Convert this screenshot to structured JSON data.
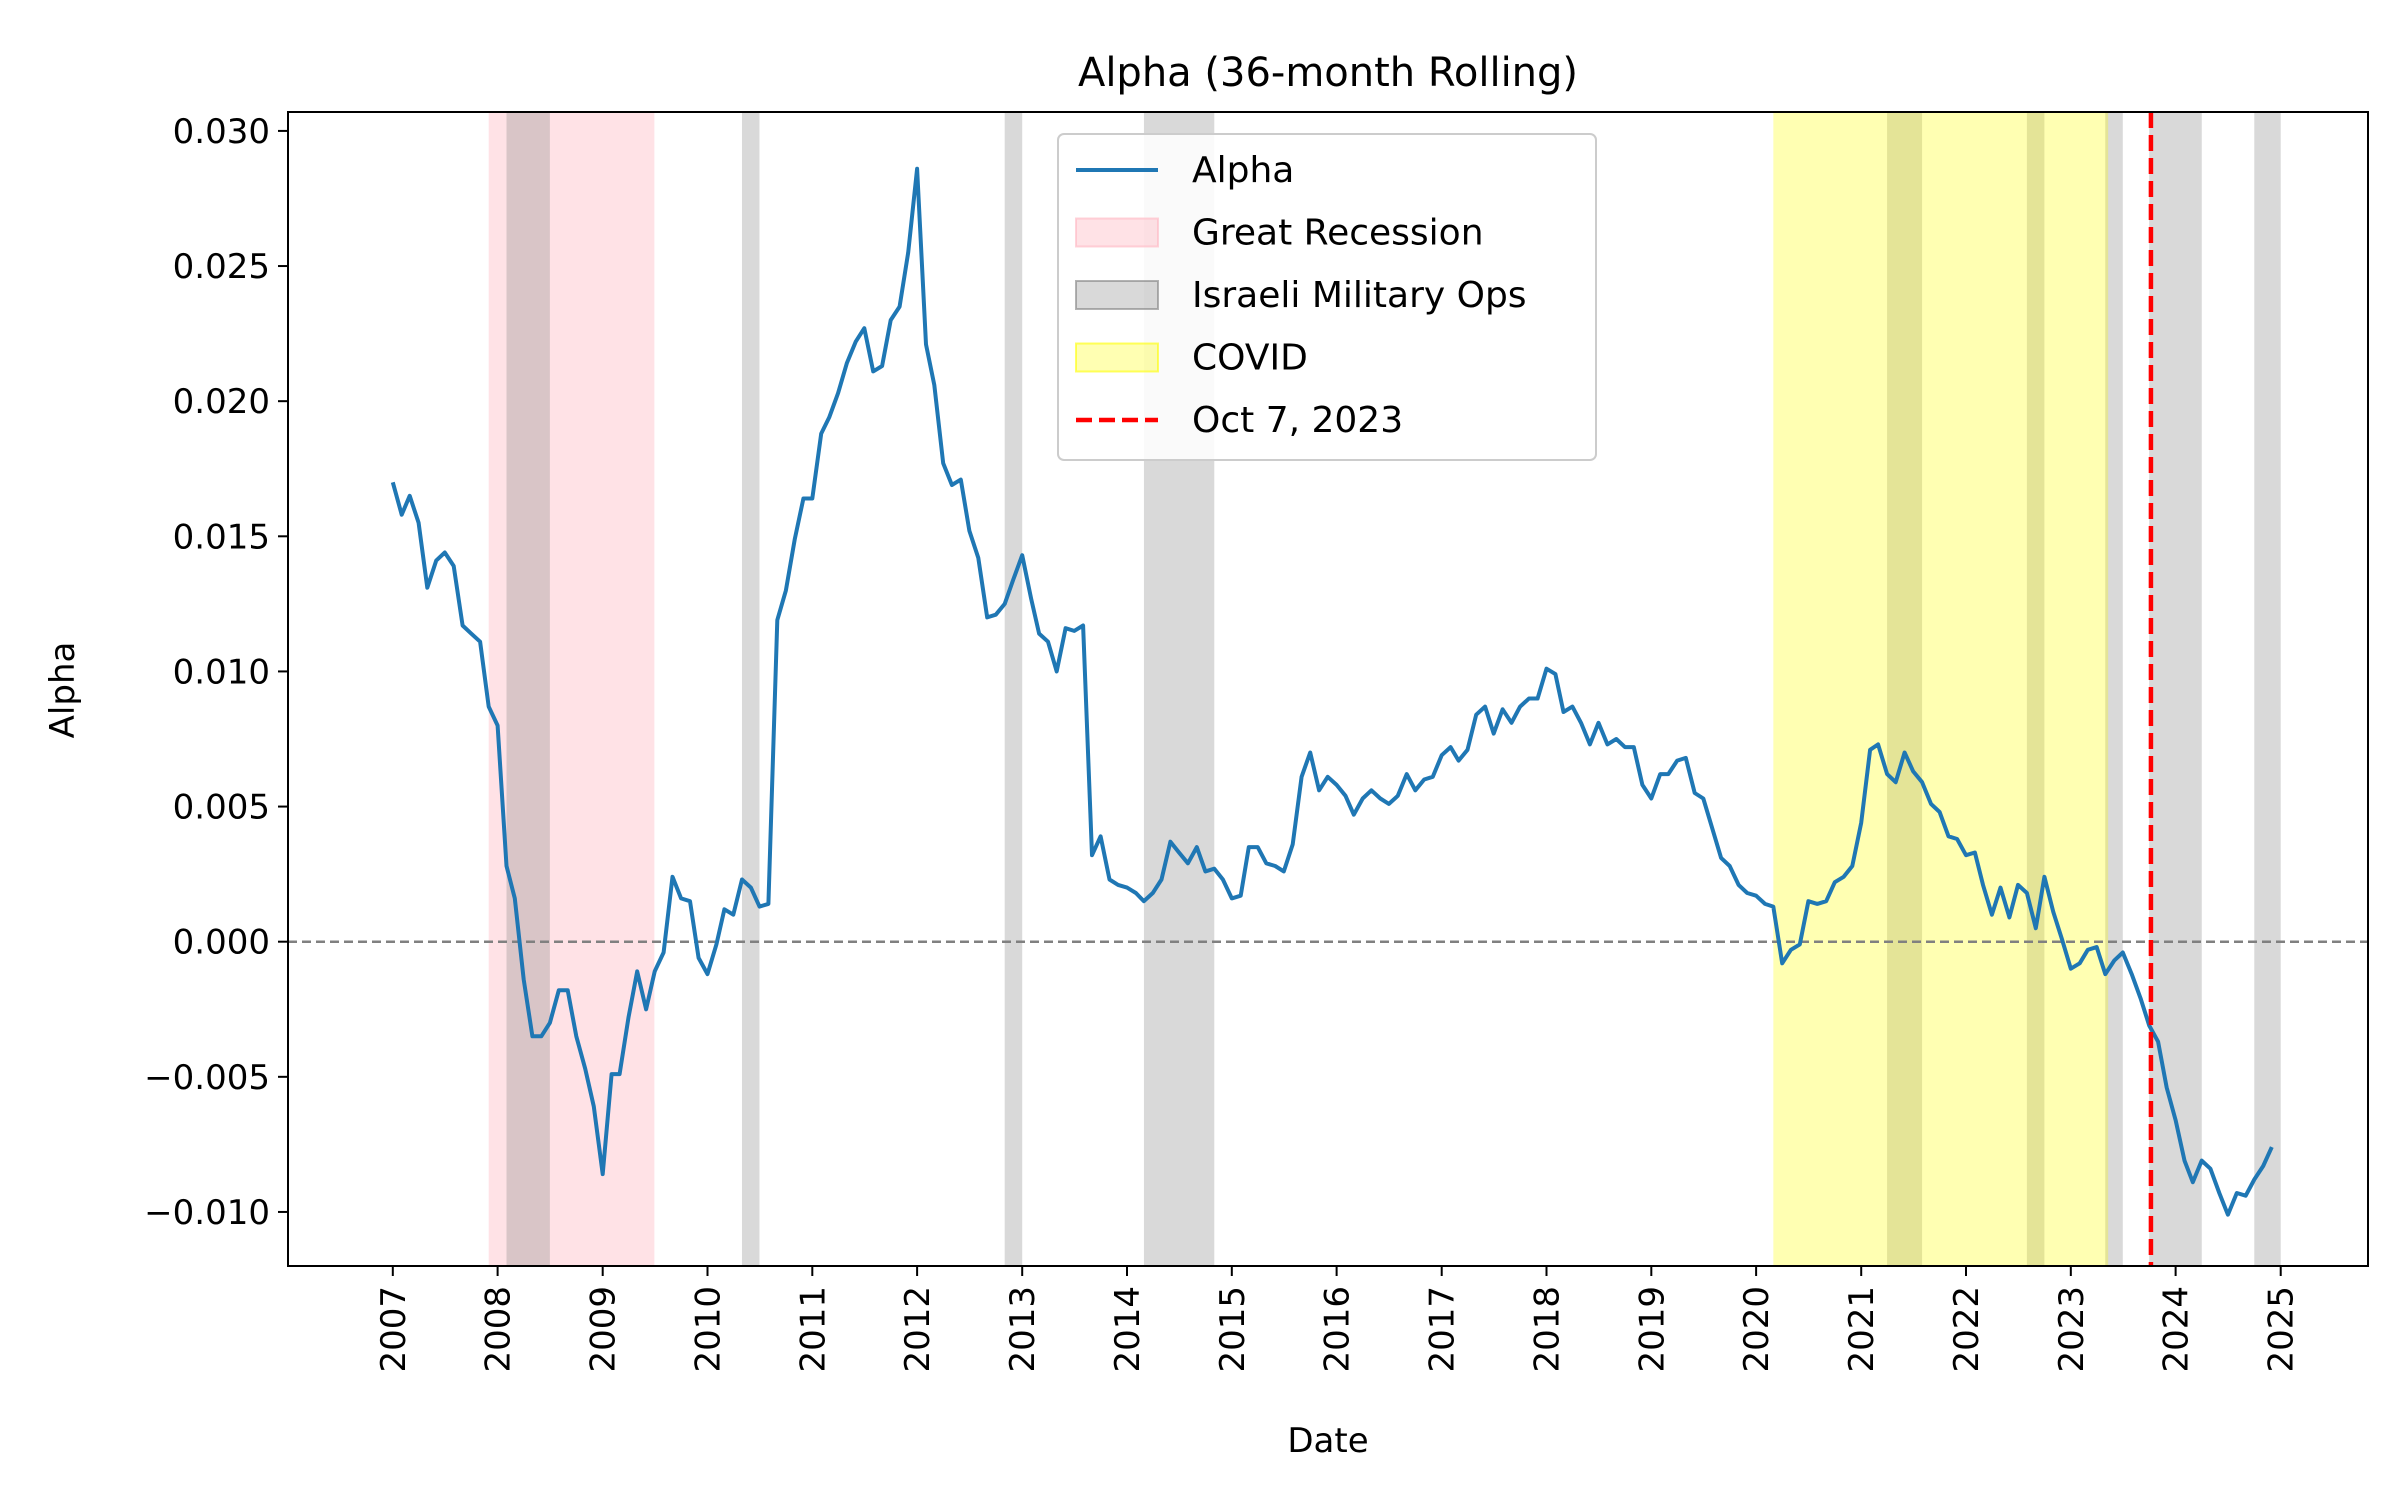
{
  "chart_data": {
    "type": "line",
    "title": "Alpha (36-month Rolling)",
    "xlabel": "Date",
    "ylabel": "Alpha",
    "xlim": [
      "2006-01-01",
      "2025-11-01"
    ],
    "ylim": [
      -0.012,
      0.0307
    ],
    "x_ticks": [
      "2007",
      "2008",
      "2009",
      "2010",
      "2011",
      "2012",
      "2013",
      "2014",
      "2015",
      "2016",
      "2017",
      "2018",
      "2019",
      "2020",
      "2021",
      "2022",
      "2023",
      "2024",
      "2025"
    ],
    "y_ticks": [
      {
        "value": 0.03,
        "label": "0.030"
      },
      {
        "value": 0.025,
        "label": "0.025"
      },
      {
        "value": 0.02,
        "label": "0.020"
      },
      {
        "value": 0.015,
        "label": "0.015"
      },
      {
        "value": 0.01,
        "label": "0.010"
      },
      {
        "value": 0.005,
        "label": "0.005"
      },
      {
        "value": 0.0,
        "label": "0.000"
      },
      {
        "value": -0.005,
        "label": "−0.005"
      },
      {
        "value": -0.01,
        "label": "−0.010"
      }
    ],
    "zero_line": {
      "value": 0.0,
      "color": "#808080",
      "style": "dashed"
    },
    "series": [
      {
        "name": "Alpha",
        "color": "#1f77b4",
        "points": [
          [
            "2007-01",
            0.017
          ],
          [
            "2007-02",
            0.0158
          ],
          [
            "2007-03",
            0.0165
          ],
          [
            "2007-04",
            0.0155
          ],
          [
            "2007-05",
            0.0131
          ],
          [
            "2007-06",
            0.0141
          ],
          [
            "2007-07",
            0.0144
          ],
          [
            "2007-08",
            0.0139
          ],
          [
            "2007-09",
            0.0117
          ],
          [
            "2007-10",
            0.0114
          ],
          [
            "2007-11",
            0.0111
          ],
          [
            "2007-12",
            0.0087
          ],
          [
            "2008-01",
            0.008
          ],
          [
            "2008-02",
            0.0028
          ],
          [
            "2008-03",
            0.0016
          ],
          [
            "2008-04",
            -0.0014
          ],
          [
            "2008-05",
            -0.0035
          ],
          [
            "2008-06",
            -0.0035
          ],
          [
            "2008-07",
            -0.003
          ],
          [
            "2008-08",
            -0.0018
          ],
          [
            "2008-09",
            -0.0018
          ],
          [
            "2008-10",
            -0.0035
          ],
          [
            "2008-11",
            -0.0047
          ],
          [
            "2008-12",
            -0.0061
          ],
          [
            "2009-01",
            -0.0086
          ],
          [
            "2009-02",
            -0.0049
          ],
          [
            "2009-03",
            -0.0049
          ],
          [
            "2009-04",
            -0.0028
          ],
          [
            "2009-05",
            -0.0011
          ],
          [
            "2009-06",
            -0.0025
          ],
          [
            "2009-07",
            -0.0011
          ],
          [
            "2009-08",
            -0.0004
          ],
          [
            "2009-09",
            0.0024
          ],
          [
            "2009-10",
            0.0016
          ],
          [
            "2009-11",
            0.0015
          ],
          [
            "2009-12",
            -0.0006
          ],
          [
            "2010-01",
            -0.0012
          ],
          [
            "2010-02",
            -0.0001
          ],
          [
            "2010-03",
            0.0012
          ],
          [
            "2010-04",
            0.001
          ],
          [
            "2010-05",
            0.0023
          ],
          [
            "2010-06",
            0.002
          ],
          [
            "2010-07",
            0.0013
          ],
          [
            "2010-08",
            0.0014
          ],
          [
            "2010-09",
            0.0119
          ],
          [
            "2010-10",
            0.013
          ],
          [
            "2010-11",
            0.0149
          ],
          [
            "2010-12",
            0.0164
          ],
          [
            "2011-01",
            0.0164
          ],
          [
            "2011-02",
            0.0188
          ],
          [
            "2011-03",
            0.0194
          ],
          [
            "2011-04",
            0.0203
          ],
          [
            "2011-05",
            0.0214
          ],
          [
            "2011-06",
            0.0222
          ],
          [
            "2011-07",
            0.0227
          ],
          [
            "2011-08",
            0.0211
          ],
          [
            "2011-09",
            0.0213
          ],
          [
            "2011-10",
            0.023
          ],
          [
            "2011-11",
            0.0235
          ],
          [
            "2011-12",
            0.0255
          ],
          [
            "2012-01",
            0.0286
          ],
          [
            "2012-02",
            0.0221
          ],
          [
            "2012-03",
            0.0206
          ],
          [
            "2012-04",
            0.0177
          ],
          [
            "2012-05",
            0.0169
          ],
          [
            "2012-06",
            0.0171
          ],
          [
            "2012-07",
            0.0152
          ],
          [
            "2012-08",
            0.0142
          ],
          [
            "2012-09",
            0.012
          ],
          [
            "2012-10",
            0.0121
          ],
          [
            "2012-11",
            0.0125
          ],
          [
            "2012-12",
            0.0134
          ],
          [
            "2013-01",
            0.0143
          ],
          [
            "2013-02",
            0.0127
          ],
          [
            "2013-03",
            0.0114
          ],
          [
            "2013-04",
            0.0111
          ],
          [
            "2013-05",
            0.01
          ],
          [
            "2013-06",
            0.0116
          ],
          [
            "2013-07",
            0.0115
          ],
          [
            "2013-08",
            0.0117
          ],
          [
            "2013-09",
            0.0032
          ],
          [
            "2013-10",
            0.0039
          ],
          [
            "2013-11",
            0.0023
          ],
          [
            "2013-12",
            0.0021
          ],
          [
            "2014-01",
            0.002
          ],
          [
            "2014-02",
            0.0018
          ],
          [
            "2014-03",
            0.0015
          ],
          [
            "2014-04",
            0.0018
          ],
          [
            "2014-05",
            0.0023
          ],
          [
            "2014-06",
            0.0037
          ],
          [
            "2014-07",
            0.0033
          ],
          [
            "2014-08",
            0.0029
          ],
          [
            "2014-09",
            0.0035
          ],
          [
            "2014-10",
            0.0026
          ],
          [
            "2014-11",
            0.0027
          ],
          [
            "2014-12",
            0.0023
          ],
          [
            "2015-01",
            0.0016
          ],
          [
            "2015-02",
            0.0017
          ],
          [
            "2015-03",
            0.0035
          ],
          [
            "2015-04",
            0.0035
          ],
          [
            "2015-05",
            0.0029
          ],
          [
            "2015-06",
            0.0028
          ],
          [
            "2015-07",
            0.0026
          ],
          [
            "2015-08",
            0.0036
          ],
          [
            "2015-09",
            0.0061
          ],
          [
            "2015-10",
            0.007
          ],
          [
            "2015-11",
            0.0056
          ],
          [
            "2015-12",
            0.0061
          ],
          [
            "2016-01",
            0.0058
          ],
          [
            "2016-02",
            0.0054
          ],
          [
            "2016-03",
            0.0047
          ],
          [
            "2016-04",
            0.0053
          ],
          [
            "2016-05",
            0.0056
          ],
          [
            "2016-06",
            0.0053
          ],
          [
            "2016-07",
            0.0051
          ],
          [
            "2016-08",
            0.0054
          ],
          [
            "2016-09",
            0.0062
          ],
          [
            "2016-10",
            0.0056
          ],
          [
            "2016-11",
            0.006
          ],
          [
            "2016-12",
            0.0061
          ],
          [
            "2017-01",
            0.0069
          ],
          [
            "2017-02",
            0.0072
          ],
          [
            "2017-03",
            0.0067
          ],
          [
            "2017-04",
            0.0071
          ],
          [
            "2017-05",
            0.0084
          ],
          [
            "2017-06",
            0.0087
          ],
          [
            "2017-07",
            0.0077
          ],
          [
            "2017-08",
            0.0086
          ],
          [
            "2017-09",
            0.0081
          ],
          [
            "2017-10",
            0.0087
          ],
          [
            "2017-11",
            0.009
          ],
          [
            "2017-12",
            0.009
          ],
          [
            "2018-01",
            0.0101
          ],
          [
            "2018-02",
            0.0099
          ],
          [
            "2018-03",
            0.0085
          ],
          [
            "2018-04",
            0.0087
          ],
          [
            "2018-05",
            0.0081
          ],
          [
            "2018-06",
            0.0073
          ],
          [
            "2018-07",
            0.0081
          ],
          [
            "2018-08",
            0.0073
          ],
          [
            "2018-09",
            0.0075
          ],
          [
            "2018-10",
            0.0072
          ],
          [
            "2018-11",
            0.0072
          ],
          [
            "2018-12",
            0.0058
          ],
          [
            "2019-01",
            0.0053
          ],
          [
            "2019-02",
            0.0062
          ],
          [
            "2019-03",
            0.0062
          ],
          [
            "2019-04",
            0.0067
          ],
          [
            "2019-05",
            0.0068
          ],
          [
            "2019-06",
            0.0055
          ],
          [
            "2019-07",
            0.0053
          ],
          [
            "2019-08",
            0.0042
          ],
          [
            "2019-09",
            0.0031
          ],
          [
            "2019-10",
            0.0028
          ],
          [
            "2019-11",
            0.0021
          ],
          [
            "2019-12",
            0.0018
          ],
          [
            "2020-01",
            0.0017
          ],
          [
            "2020-02",
            0.0014
          ],
          [
            "2020-03",
            0.0013
          ],
          [
            "2020-04",
            -0.0008
          ],
          [
            "2020-05",
            -0.0003
          ],
          [
            "2020-06",
            -0.0001
          ],
          [
            "2020-07",
            0.0015
          ],
          [
            "2020-08",
            0.0014
          ],
          [
            "2020-09",
            0.0015
          ],
          [
            "2020-10",
            0.0022
          ],
          [
            "2020-11",
            0.0024
          ],
          [
            "2020-12",
            0.0028
          ],
          [
            "2021-01",
            0.0044
          ],
          [
            "2021-02",
            0.0071
          ],
          [
            "2021-03",
            0.0073
          ],
          [
            "2021-04",
            0.0062
          ],
          [
            "2021-05",
            0.0059
          ],
          [
            "2021-06",
            0.007
          ],
          [
            "2021-07",
            0.0063
          ],
          [
            "2021-08",
            0.0059
          ],
          [
            "2021-09",
            0.0051
          ],
          [
            "2021-10",
            0.0048
          ],
          [
            "2021-11",
            0.0039
          ],
          [
            "2021-12",
            0.0038
          ],
          [
            "2022-01",
            0.0032
          ],
          [
            "2022-02",
            0.0033
          ],
          [
            "2022-03",
            0.0021
          ],
          [
            "2022-04",
            0.001
          ],
          [
            "2022-05",
            0.002
          ],
          [
            "2022-06",
            0.0009
          ],
          [
            "2022-07",
            0.0021
          ],
          [
            "2022-08",
            0.0018
          ],
          [
            "2022-09",
            0.0005
          ],
          [
            "2022-10",
            0.0024
          ],
          [
            "2022-11",
            0.0011
          ],
          [
            "2022-12",
            0.0001
          ],
          [
            "2023-01",
            -0.001
          ],
          [
            "2023-02",
            -0.0008
          ],
          [
            "2023-03",
            -0.0003
          ],
          [
            "2023-04",
            -0.0002
          ],
          [
            "2023-05",
            -0.0012
          ],
          [
            "2023-06",
            -0.0007
          ],
          [
            "2023-07",
            -0.0004
          ],
          [
            "2023-08",
            -0.0012
          ],
          [
            "2023-09",
            -0.0021
          ],
          [
            "2023-10",
            -0.0031
          ],
          [
            "2023-11",
            -0.0037
          ],
          [
            "2023-12",
            -0.0054
          ],
          [
            "2024-01",
            -0.0066
          ],
          [
            "2024-02",
            -0.0081
          ],
          [
            "2024-03",
            -0.0089
          ],
          [
            "2024-04",
            -0.0081
          ],
          [
            "2024-05",
            -0.0084
          ],
          [
            "2024-06",
            -0.0093
          ],
          [
            "2024-07",
            -0.0101
          ],
          [
            "2024-08",
            -0.0093
          ],
          [
            "2024-09",
            -0.0094
          ],
          [
            "2024-10",
            -0.0088
          ],
          [
            "2024-11",
            -0.0083
          ],
          [
            "2024-12",
            -0.0076
          ]
        ]
      }
    ],
    "shaded_regions": [
      {
        "legend": "Great Recession",
        "color": "#ffb6c1",
        "opacity": 0.4,
        "ranges": [
          [
            "2007-12-01",
            "2009-06-30"
          ]
        ]
      },
      {
        "legend": "Israeli Military Ops",
        "color": "#808080",
        "opacity": 0.3,
        "ranges": [
          [
            "2008-02-01",
            "2008-07-01"
          ],
          [
            "2010-05-01",
            "2010-07-01"
          ],
          [
            "2012-11-01",
            "2013-01-01"
          ],
          [
            "2014-03-01",
            "2014-11-01"
          ],
          [
            "2021-04-01",
            "2021-08-01"
          ],
          [
            "2022-08-01",
            "2022-10-01"
          ],
          [
            "2023-05-01",
            "2023-07-01"
          ],
          [
            "2023-10-01",
            "2024-04-01"
          ],
          [
            "2024-10-01",
            "2025-01-01"
          ]
        ]
      },
      {
        "legend": "COVID",
        "color": "#ffff00",
        "opacity": 0.3,
        "ranges": [
          [
            "2020-03-01",
            "2023-05-11"
          ]
        ]
      }
    ],
    "event_line": {
      "label": "Oct 7, 2023",
      "date": "2023-10-07",
      "color": "#ff0000",
      "style": "dashed"
    },
    "legend": {
      "placement": "upper-center",
      "entries": [
        {
          "label": "Alpha",
          "kind": "line",
          "color": "#1f77b4"
        },
        {
          "label": "Great Recession",
          "kind": "patch",
          "color": "#ffb6c1",
          "opacity": 0.4
        },
        {
          "label": "Israeli Military Ops",
          "kind": "patch",
          "color": "#808080",
          "opacity": 0.3
        },
        {
          "label": "COVID",
          "kind": "patch",
          "color": "#ffff00",
          "opacity": 0.3
        },
        {
          "label": "Oct 7, 2023",
          "kind": "dashed-line",
          "color": "#ff0000"
        }
      ]
    },
    "grid": false
  }
}
